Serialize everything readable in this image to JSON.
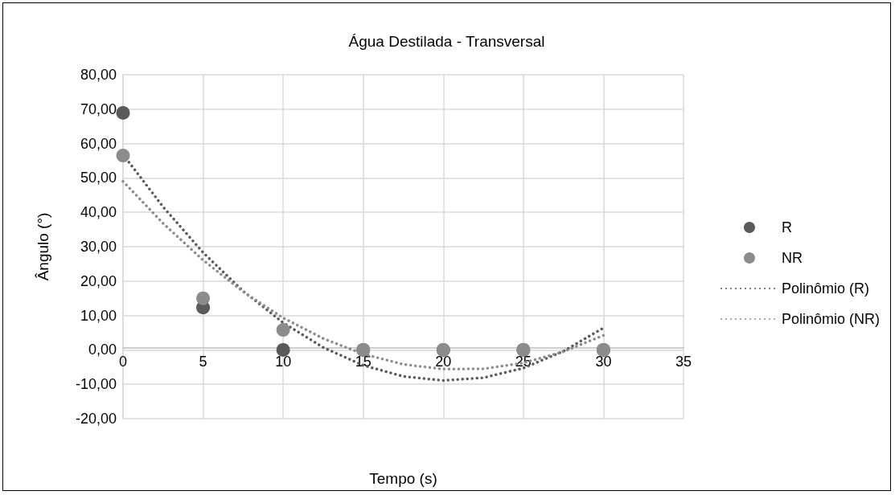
{
  "chart_data": {
    "type": "scatter",
    "title": "Água Destilada - Transversal",
    "xlabel": "Tempo (s)",
    "ylabel": "Ângulo (°)",
    "xlim": [
      0,
      35
    ],
    "xticks": [
      0,
      5,
      10,
      15,
      20,
      25,
      30,
      35
    ],
    "ylim": [
      -20,
      80
    ],
    "yticks": [
      {
        "value": -20,
        "label": "-20,00"
      },
      {
        "value": -10,
        "label": "-10,00"
      },
      {
        "value": 0,
        "label": "0,00"
      },
      {
        "value": 10,
        "label": "10,00"
      },
      {
        "value": 20,
        "label": "20,00"
      },
      {
        "value": 30,
        "label": "30,00"
      },
      {
        "value": 40,
        "label": "40,00"
      },
      {
        "value": 50,
        "label": "50,00"
      },
      {
        "value": 60,
        "label": "60,00"
      },
      {
        "value": 70,
        "label": "70,00"
      },
      {
        "value": 80,
        "label": "80,00"
      }
    ],
    "grid": true,
    "legend": "right",
    "marker": "circle",
    "series": [
      {
        "name": "R",
        "color": "#5a5a5a",
        "x": [
          0,
          5,
          10,
          15,
          20,
          25,
          30
        ],
        "values": [
          68.9,
          12.3,
          0,
          0,
          0,
          0,
          0
        ]
      },
      {
        "name": "NR",
        "color": "#8c8c8c",
        "x": [
          0,
          5,
          10,
          15,
          20,
          25,
          30
        ],
        "values": [
          56.5,
          15,
          5.8,
          0,
          0,
          0,
          0
        ]
      },
      {
        "name": "Polinômio (R)",
        "type": "line",
        "color": "#5a5a5a",
        "line_style": "dotted",
        "marker": "none",
        "x": [
          0,
          2.5,
          5,
          7.5,
          10,
          12.5,
          15,
          17.5,
          20,
          22.5,
          25,
          27.5,
          30
        ],
        "values": [
          56.8,
          41.6,
          28.3,
          17.1,
          7.9,
          0.7,
          -4.5,
          -7.7,
          -8.9,
          -8.1,
          -5.3,
          -0.4,
          6.4
        ]
      },
      {
        "name": "Polinômio (NR)",
        "type": "line",
        "color": "#8c8c8c",
        "line_style": "dotted",
        "marker": "none",
        "x": [
          0,
          2.5,
          5,
          7.5,
          10,
          12.5,
          15,
          17.5,
          20,
          22.5,
          25,
          27.5,
          30
        ],
        "values": [
          49,
          36.8,
          26.1,
          16.9,
          9.3,
          3.3,
          -1.2,
          -4.2,
          -5.6,
          -5.5,
          -3.8,
          -0.5,
          4.2
        ]
      }
    ]
  }
}
